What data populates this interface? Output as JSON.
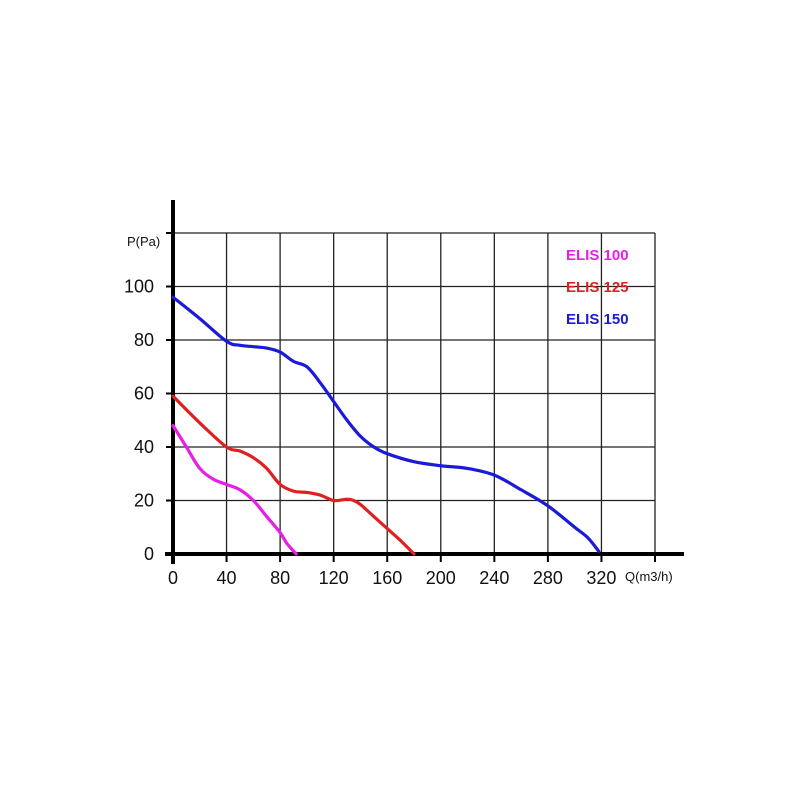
{
  "chart_data": {
    "type": "line",
    "xlabel": "Q(m3/h)",
    "ylabel": "P(Pa)",
    "xlim": [
      0,
      360
    ],
    "ylim": [
      0,
      120
    ],
    "xticks": [
      "0",
      "40",
      "80",
      "120",
      "160",
      "200",
      "240",
      "280",
      "320"
    ],
    "yticks": [
      "0",
      "20",
      "40",
      "60",
      "80",
      "100"
    ],
    "grid": true,
    "legend_position": "top-right",
    "series": [
      {
        "name": "ELIS 100",
        "color": "#e81ee8",
        "x": [
          0,
          10,
          20,
          30,
          40,
          50,
          60,
          70,
          80,
          85,
          92
        ],
        "y": [
          48,
          40,
          32,
          28,
          26,
          24,
          20,
          14,
          8,
          4,
          0
        ]
      },
      {
        "name": "ELIS 125",
        "color": "#e02020",
        "x": [
          0,
          20,
          40,
          50,
          60,
          70,
          80,
          90,
          100,
          110,
          120,
          130,
          135,
          140,
          150,
          160,
          170,
          180
        ],
        "y": [
          59,
          49,
          40,
          38.5,
          36,
          32,
          26,
          23.5,
          23,
          22,
          20,
          20.5,
          20,
          18.5,
          14,
          9.5,
          5,
          0
        ]
      },
      {
        "name": "ELIS 150",
        "color": "#1a1ad8",
        "x": [
          0,
          20,
          40,
          50,
          60,
          70,
          80,
          90,
          100,
          110,
          120,
          130,
          140,
          150,
          160,
          180,
          200,
          220,
          240,
          260,
          280,
          300,
          310,
          318
        ],
        "y": [
          96,
          88,
          79.5,
          78,
          77.5,
          77,
          75.5,
          72,
          70,
          64,
          57,
          50,
          44,
          40,
          37.5,
          34.5,
          33,
          32,
          29.5,
          24,
          18,
          10,
          6,
          1
        ]
      }
    ]
  }
}
